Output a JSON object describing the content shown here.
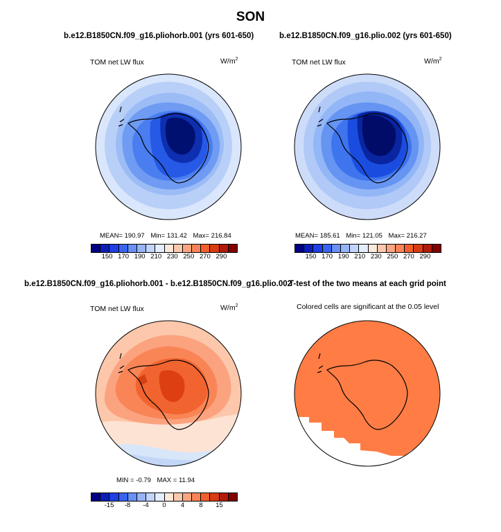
{
  "figure": {
    "season": "SON"
  },
  "panels": [
    {
      "title": "b.e12.B1850CN.f09_g16.pliohorb.001 (yrs 601-650)",
      "variable": "TOM net LW flux",
      "units_base": "W/m",
      "units_exp": "2",
      "stats": {
        "mean": "MEAN= 190.97",
        "min": "Min= 131.42",
        "max": "Max= 216.84"
      }
    },
    {
      "title": "b.e12.B1850CN.f09_g16.plio.002 (yrs 601-650)",
      "variable": "TOM net LW flux",
      "units_base": "W/m",
      "units_exp": "2",
      "stats": {
        "mean": "MEAN= 185.61",
        "min": "Min= 121.05",
        "max": "Max= 216.27"
      }
    },
    {
      "title": "b.e12.B1850CN.f09_g16.pliohorb.001 - b.e12.B1850CN.f09_g16.plio.002",
      "variable": "TOM net LW flux",
      "units_base": "W/m",
      "units_exp": "2",
      "stats": {
        "min": "MIN =  -0.79",
        "max": "MAX =  11.94"
      }
    },
    {
      "title": "T-test of the two means at each grid point",
      "subtitle": "Colored cells are significant at the 0.05 level"
    }
  ],
  "colorbars": {
    "absolute": {
      "labels": [
        "150",
        "170",
        "190",
        "210",
        "230",
        "250",
        "270",
        "290"
      ],
      "colors": [
        "#000080",
        "#0b1fb8",
        "#1f3fe0",
        "#3a64f0",
        "#6990f4",
        "#98b4f7",
        "#c3d4fa",
        "#e3edfd",
        "#fde8dc",
        "#fcc8ad",
        "#fba582",
        "#fa8458",
        "#f0602e",
        "#d93c14",
        "#b01c0a",
        "#800000"
      ]
    },
    "difference": {
      "labels": [
        "-15",
        "-8",
        "-4",
        "0",
        "4",
        "8",
        "15"
      ],
      "colors": [
        "#000080",
        "#0b1fb8",
        "#1f3fe0",
        "#3a64f0",
        "#6990f4",
        "#98b4f7",
        "#c3d4fa",
        "#e3edfd",
        "#fde8dc",
        "#fcc8ad",
        "#fba582",
        "#fa8458",
        "#f0602e",
        "#d93c14",
        "#b01c0a",
        "#800000"
      ]
    }
  }
}
